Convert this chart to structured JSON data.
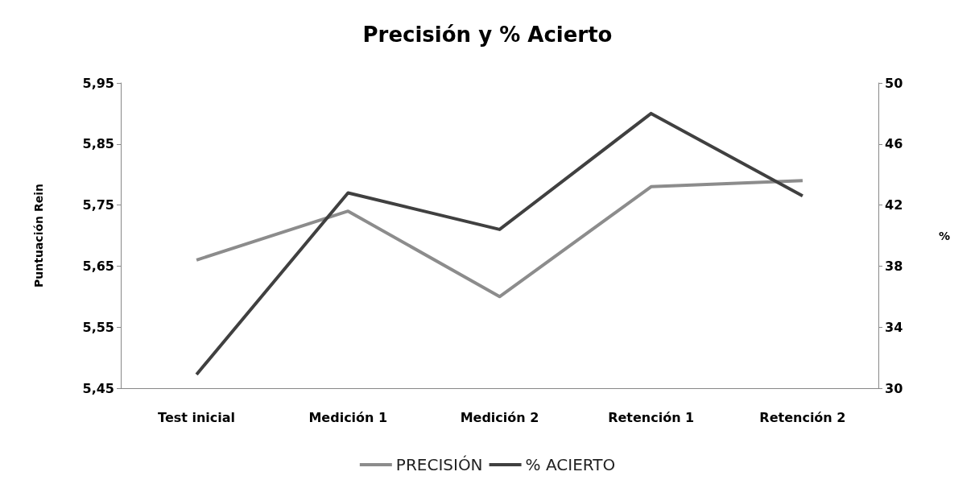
{
  "chart_data": {
    "type": "line",
    "title": "Precisión y % Acierto",
    "ylabel": "Puntuación Rein",
    "y2label": "%",
    "categories": [
      "Test inicial",
      "Medición 1",
      "Medición 2",
      "Retención 1",
      "Retención 2"
    ],
    "series": [
      {
        "name": "PRECISIÓN",
        "color": "#8c8c8c",
        "values": [
          5.66,
          5.74,
          5.6,
          5.78,
          5.79
        ]
      },
      {
        "name": "% ACIERTO",
        "color": "#404040",
        "values": [
          30.9,
          42.8,
          40.4,
          48,
          42.6
        ],
        "axis": "y2"
      }
    ],
    "ylim": [
      5.45,
      5.95
    ],
    "yticks": [
      {
        "value": 5.45,
        "label": "5,45"
      },
      {
        "value": 5.55,
        "label": "5,55"
      },
      {
        "value": 5.65,
        "label": "5,65"
      },
      {
        "value": 5.75,
        "label": "5,75"
      },
      {
        "value": 5.85,
        "label": "5,85"
      },
      {
        "value": 5.95,
        "label": "5,95"
      }
    ],
    "y2lim": [
      30,
      50
    ],
    "y2ticks": [
      30,
      34,
      38,
      42,
      46,
      50
    ],
    "grid": false,
    "legend": "bottom",
    "marker": "none",
    "line_style": "solid"
  }
}
